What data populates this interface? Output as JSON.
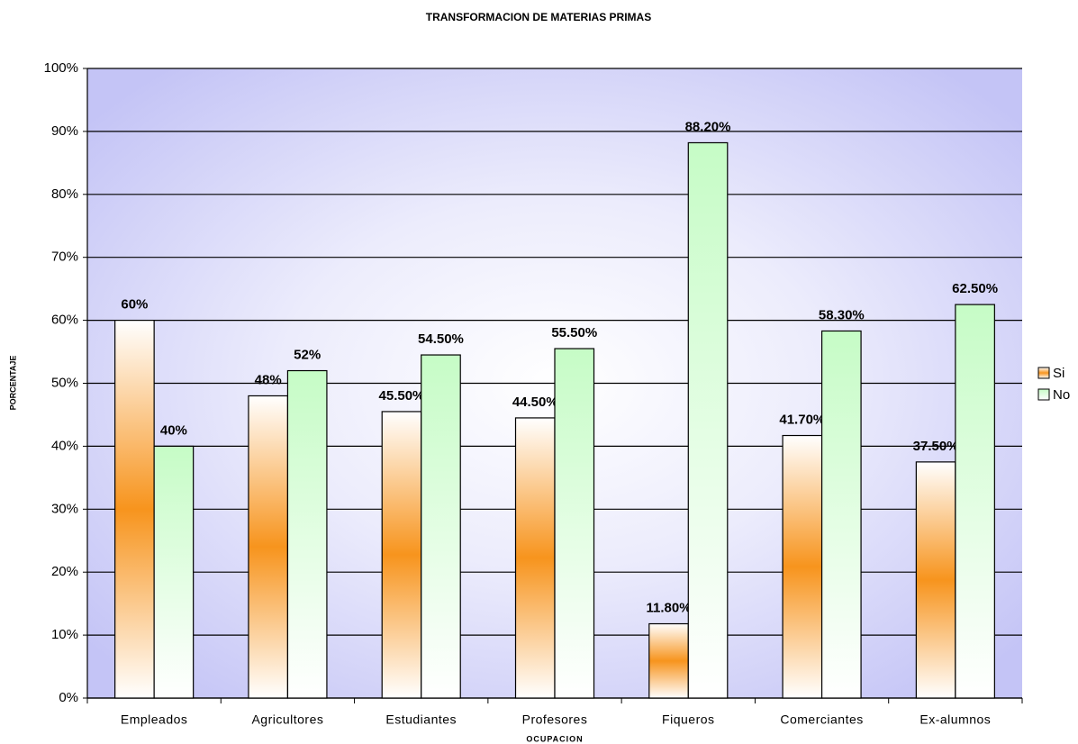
{
  "chart_data": {
    "type": "bar",
    "title": "TRANSFORMACION DE MATERIAS PRIMAS",
    "x_label": "OCUPACION",
    "y_label": "PORCENTAJE",
    "categories": [
      "Empleados",
      "Agricultores",
      "Estudiantes",
      "Profesores",
      "Fiqueros",
      "Comerciantes",
      "Ex-alumnos"
    ],
    "series": [
      {
        "name": "Si",
        "color": "#f7941d",
        "values": [
          60,
          48,
          45.5,
          44.5,
          11.8,
          41.7,
          37.5
        ],
        "value_labels": [
          "60%",
          "48%",
          "45.50%",
          "44.50%",
          "11.80%",
          "41.70%",
          "37.50%"
        ]
      },
      {
        "name": "No",
        "color": "#c6fcc6",
        "values": [
          40,
          52,
          54.5,
          55.5,
          88.2,
          58.3,
          62.5
        ],
        "value_labels": [
          "40%",
          "52%",
          "54.50%",
          "55.50%",
          "88.20%",
          "58.30%",
          "62.50%"
        ]
      }
    ],
    "ylim": [
      0,
      100
    ],
    "yticks": [
      {
        "value": 0,
        "label": "0%"
      },
      {
        "value": 10,
        "label": "10%"
      },
      {
        "value": 20,
        "label": "20%"
      },
      {
        "value": 30,
        "label": "30%"
      },
      {
        "value": 40,
        "label": "40%"
      },
      {
        "value": 50,
        "label": "50%"
      },
      {
        "value": 60,
        "label": "60%"
      },
      {
        "value": 70,
        "label": "70%"
      },
      {
        "value": 80,
        "label": "80%"
      },
      {
        "value": 90,
        "label": "90%"
      },
      {
        "value": 100,
        "label": "100%"
      }
    ],
    "grid": true,
    "legend": "right"
  }
}
